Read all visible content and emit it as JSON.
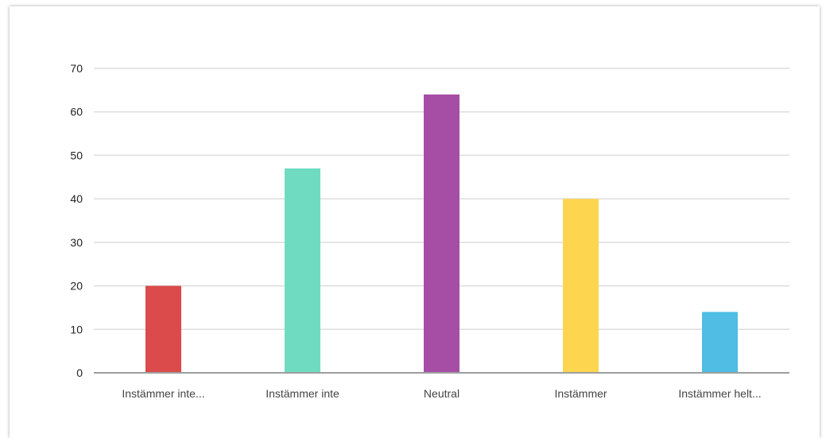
{
  "chart_data": {
    "type": "bar",
    "categories": [
      "Instämmer inte...",
      "Instämmer inte",
      "Neutral",
      "Instämmer",
      "Instämmer helt..."
    ],
    "values": [
      20,
      47,
      64,
      40,
      14
    ],
    "colors": [
      "#db4b4b",
      "#6fdcc2",
      "#a64da6",
      "#fdd54f",
      "#4fbde4"
    ],
    "yticks": [
      0,
      10,
      20,
      30,
      40,
      50,
      60,
      70
    ],
    "ylim": [
      0,
      70
    ],
    "grid": true,
    "legend": "none",
    "title": "",
    "xlabel": "",
    "ylabel": ""
  }
}
